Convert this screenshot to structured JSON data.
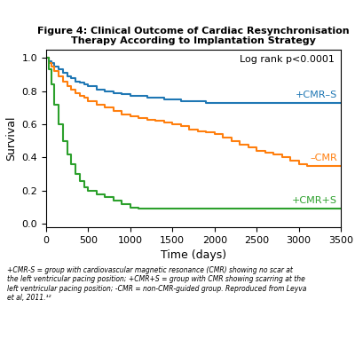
{
  "chart_data": {
    "type": "step",
    "title": "Figure 4: Clinical Outcome of Cardiac Resynchronisation\nTherapy According to Implantation Strategy",
    "x_label": "Time (days)",
    "y_label": "Survival",
    "xlim": [
      0,
      3500
    ],
    "ylim": [
      -0.02,
      1.05
    ],
    "xticks": [
      0,
      500,
      1000,
      1500,
      2000,
      2500,
      3000,
      3500
    ],
    "yticks": [
      0.0,
      0.2,
      0.4,
      0.6,
      0.8,
      1.0
    ],
    "annotations": [
      "Log rank p<0.0001"
    ],
    "footnote": "+CMR-S = group with cardiovascular magnetic resonance (CMR) showing no scar at\nthe left ventricular pacing position; +CMR+S = group with CMR showing scarring at the\nleft ventricular pacing position; -CMR = non-CMR-guided group. Reproduced from Leyva\net al, 2011.¹²",
    "series": [
      {
        "name": "+CMR–S",
        "x": [
          0,
          30,
          60,
          100,
          150,
          200,
          250,
          300,
          350,
          400,
          450,
          500,
          600,
          700,
          800,
          900,
          1000,
          1100,
          1200,
          1300,
          1400,
          1500,
          1600,
          1700,
          1800,
          1900,
          2000,
          2100,
          2200,
          2300,
          2400,
          2500,
          2600,
          2700,
          2800,
          2900,
          3000,
          3100,
          3500
        ],
        "values": [
          1.0,
          0.98,
          0.97,
          0.95,
          0.93,
          0.91,
          0.89,
          0.88,
          0.86,
          0.85,
          0.84,
          0.83,
          0.81,
          0.8,
          0.79,
          0.78,
          0.77,
          0.77,
          0.76,
          0.76,
          0.75,
          0.75,
          0.74,
          0.74,
          0.74,
          0.73,
          0.73,
          0.73,
          0.73,
          0.73,
          0.73,
          0.73,
          0.73,
          0.73,
          0.73,
          0.73,
          0.73,
          0.73,
          0.73
        ]
      },
      {
        "name": "–CMR",
        "x": [
          0,
          30,
          60,
          100,
          150,
          200,
          250,
          300,
          350,
          400,
          450,
          500,
          600,
          700,
          800,
          900,
          1000,
          1100,
          1200,
          1300,
          1400,
          1500,
          1600,
          1700,
          1800,
          1900,
          2000,
          2100,
          2200,
          2300,
          2400,
          2500,
          2600,
          2700,
          2800,
          2900,
          3000,
          3100,
          3500
        ],
        "values": [
          1.0,
          0.97,
          0.95,
          0.92,
          0.89,
          0.86,
          0.83,
          0.81,
          0.79,
          0.77,
          0.76,
          0.74,
          0.72,
          0.7,
          0.68,
          0.66,
          0.65,
          0.64,
          0.63,
          0.62,
          0.61,
          0.6,
          0.59,
          0.57,
          0.56,
          0.55,
          0.54,
          0.52,
          0.5,
          0.48,
          0.46,
          0.44,
          0.43,
          0.42,
          0.4,
          0.38,
          0.36,
          0.35,
          0.35
        ]
      },
      {
        "name": "+CMR+S",
        "x": [
          0,
          30,
          60,
          100,
          150,
          200,
          250,
          300,
          350,
          400,
          450,
          500,
          600,
          700,
          800,
          900,
          1000,
          1100,
          1200,
          1300,
          1400,
          1500,
          1600,
          1700,
          1800,
          1900,
          2000,
          2100,
          2200,
          2300,
          3500
        ],
        "values": [
          1.0,
          0.93,
          0.84,
          0.72,
          0.6,
          0.5,
          0.42,
          0.36,
          0.3,
          0.26,
          0.22,
          0.2,
          0.18,
          0.16,
          0.14,
          0.12,
          0.1,
          0.09,
          0.09,
          0.09,
          0.09,
          0.09,
          0.09,
          0.09,
          0.09,
          0.09,
          0.09,
          0.09,
          0.09,
          0.09,
          0.09
        ]
      }
    ]
  }
}
